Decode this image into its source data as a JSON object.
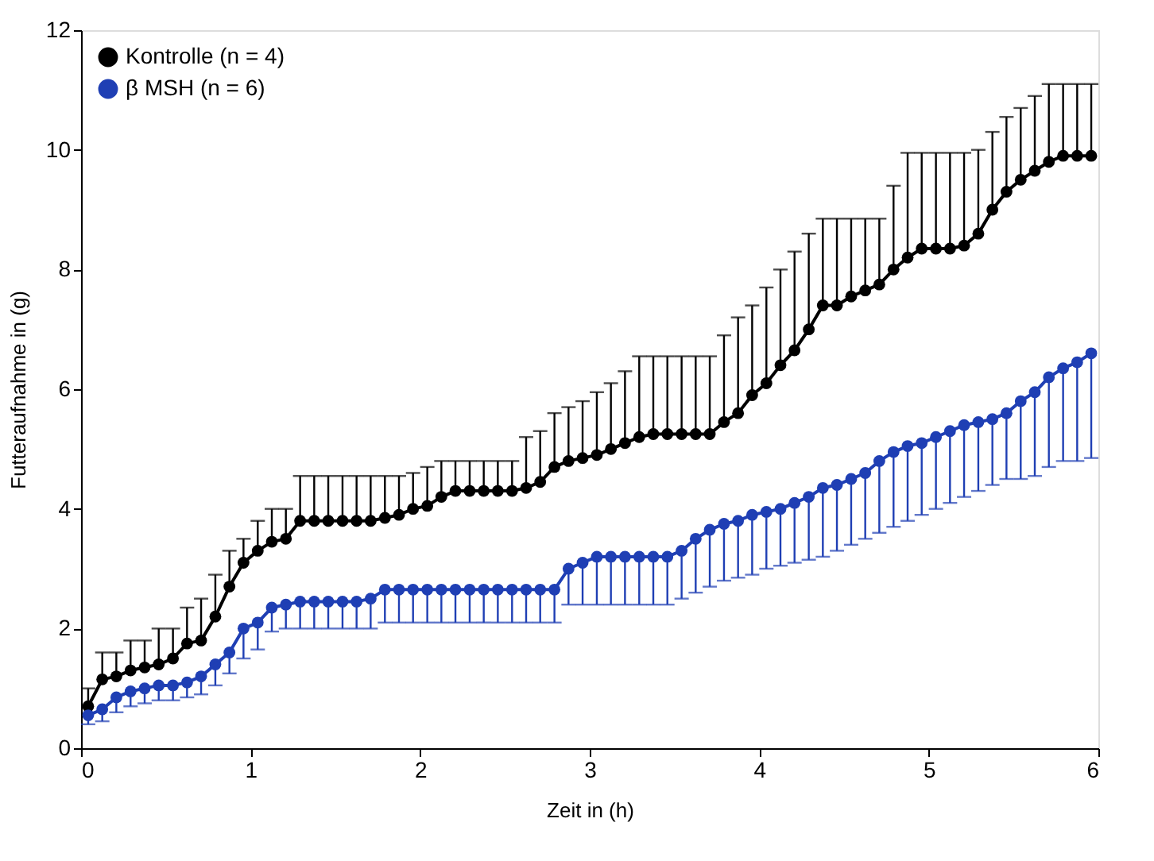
{
  "chart_data": {
    "type": "line",
    "xlabel": "Zeit in (h)",
    "ylabel": "Futteraufnahme in (g)",
    "xlim": [
      0,
      6
    ],
    "ylim": [
      0,
      12
    ],
    "xticks": [
      0,
      1,
      2,
      3,
      4,
      5,
      6
    ],
    "yticks": [
      0,
      2,
      4,
      6,
      8,
      10,
      12
    ],
    "grid": false,
    "legend": "top left",
    "marker": "circle",
    "line_style": "solid",
    "x": [
      0.042,
      0.125,
      0.208,
      0.292,
      0.375,
      0.458,
      0.542,
      0.625,
      0.708,
      0.792,
      0.875,
      0.958,
      1.042,
      1.125,
      1.208,
      1.292,
      1.375,
      1.458,
      1.542,
      1.625,
      1.708,
      1.792,
      1.875,
      1.958,
      2.042,
      2.125,
      2.208,
      2.292,
      2.375,
      2.458,
      2.542,
      2.625,
      2.708,
      2.792,
      2.875,
      2.958,
      3.042,
      3.125,
      3.208,
      3.292,
      3.375,
      3.458,
      3.542,
      3.625,
      3.708,
      3.792,
      3.875,
      3.958,
      4.042,
      4.125,
      4.208,
      4.292,
      4.375,
      4.458,
      4.542,
      4.625,
      4.708,
      4.792,
      4.875,
      4.958,
      5.042,
      5.125,
      5.208,
      5.292,
      5.375,
      5.458,
      5.542,
      5.625,
      5.708,
      5.792,
      5.875,
      5.958
    ],
    "series": [
      {
        "name": "Kontrolle (n = 4)",
        "color": "#000000",
        "values": [
          0.7,
          1.15,
          1.2,
          1.3,
          1.35,
          1.4,
          1.5,
          1.75,
          1.8,
          2.2,
          2.7,
          3.1,
          3.3,
          3.45,
          3.5,
          3.8,
          3.8,
          3.8,
          3.8,
          3.8,
          3.8,
          3.85,
          3.9,
          4.0,
          4.05,
          4.2,
          4.3,
          4.3,
          4.3,
          4.3,
          4.3,
          4.35,
          4.45,
          4.7,
          4.8,
          4.85,
          4.9,
          5.0,
          5.1,
          5.2,
          5.25,
          5.25,
          5.25,
          5.25,
          5.25,
          5.45,
          5.6,
          5.9,
          6.1,
          6.4,
          6.65,
          7.0,
          7.4,
          7.4,
          7.55,
          7.65,
          7.75,
          8.0,
          8.2,
          8.35,
          8.35,
          8.35,
          8.4,
          8.6,
          9.0,
          9.3,
          9.5,
          9.65,
          9.8,
          9.9,
          9.9,
          9.9
        ],
        "errors": [
          [
            0.7,
            1.0
          ],
          [
            1.15,
            1.6
          ],
          [
            1.2,
            1.6
          ],
          [
            1.3,
            1.8
          ],
          [
            1.35,
            1.8
          ],
          [
            1.4,
            2.0
          ],
          [
            1.5,
            2.0
          ],
          [
            1.75,
            2.35
          ],
          [
            1.8,
            2.5
          ],
          [
            2.2,
            2.9
          ],
          [
            2.7,
            3.3
          ],
          [
            3.1,
            3.5
          ],
          [
            3.3,
            3.8
          ],
          [
            3.45,
            4.0
          ],
          [
            3.5,
            4.0
          ],
          [
            3.8,
            4.55
          ],
          [
            3.8,
            4.55
          ],
          [
            3.8,
            4.55
          ],
          [
            3.8,
            4.55
          ],
          [
            3.8,
            4.55
          ],
          [
            3.8,
            4.55
          ],
          [
            3.85,
            4.55
          ],
          [
            3.9,
            4.55
          ],
          [
            4.0,
            4.6
          ],
          [
            4.05,
            4.7
          ],
          [
            4.2,
            4.8
          ],
          [
            4.3,
            4.8
          ],
          [
            4.3,
            4.8
          ],
          [
            4.3,
            4.8
          ],
          [
            4.3,
            4.8
          ],
          [
            4.3,
            4.8
          ],
          [
            4.35,
            5.2
          ],
          [
            4.45,
            5.3
          ],
          [
            4.7,
            5.6
          ],
          [
            4.8,
            5.7
          ],
          [
            4.85,
            5.8
          ],
          [
            4.9,
            5.95
          ],
          [
            5.0,
            6.1
          ],
          [
            5.1,
            6.3
          ],
          [
            5.2,
            6.55
          ],
          [
            5.25,
            6.55
          ],
          [
            5.25,
            6.55
          ],
          [
            5.25,
            6.55
          ],
          [
            5.25,
            6.55
          ],
          [
            5.25,
            6.55
          ],
          [
            5.45,
            6.9
          ],
          [
            5.6,
            7.2
          ],
          [
            5.9,
            7.4
          ],
          [
            6.1,
            7.7
          ],
          [
            6.4,
            8.0
          ],
          [
            6.65,
            8.3
          ],
          [
            7.0,
            8.6
          ],
          [
            7.4,
            8.85
          ],
          [
            7.4,
            8.85
          ],
          [
            7.55,
            8.85
          ],
          [
            7.65,
            8.85
          ],
          [
            7.75,
            8.85
          ],
          [
            8.0,
            9.4
          ],
          [
            8.2,
            9.95
          ],
          [
            8.35,
            9.95
          ],
          [
            8.35,
            9.95
          ],
          [
            8.35,
            9.95
          ],
          [
            8.4,
            9.95
          ],
          [
            8.6,
            10.0
          ],
          [
            9.0,
            10.3
          ],
          [
            9.3,
            10.55
          ],
          [
            9.5,
            10.7
          ],
          [
            9.65,
            10.9
          ],
          [
            9.8,
            11.1
          ],
          [
            9.9,
            11.1
          ],
          [
            9.9,
            11.1
          ],
          [
            9.9,
            11.1
          ]
        ]
      },
      {
        "name": "β MSH (n = 6)",
        "color": "#1f3fb4",
        "values": [
          0.55,
          0.65,
          0.85,
          0.95,
          1.0,
          1.05,
          1.05,
          1.1,
          1.2,
          1.4,
          1.6,
          2.0,
          2.1,
          2.35,
          2.4,
          2.45,
          2.45,
          2.45,
          2.45,
          2.45,
          2.5,
          2.65,
          2.65,
          2.65,
          2.65,
          2.65,
          2.65,
          2.65,
          2.65,
          2.65,
          2.65,
          2.65,
          2.65,
          2.65,
          3.0,
          3.1,
          3.2,
          3.2,
          3.2,
          3.2,
          3.2,
          3.2,
          3.3,
          3.5,
          3.65,
          3.75,
          3.8,
          3.9,
          3.95,
          4.0,
          4.1,
          4.2,
          4.35,
          4.4,
          4.5,
          4.6,
          4.8,
          4.95,
          5.05,
          5.1,
          5.2,
          5.3,
          5.4,
          5.45,
          5.5,
          5.6,
          5.8,
          5.95,
          6.2,
          6.35,
          6.45,
          6.6
        ],
        "errors": [
          [
            0.4,
            0.55
          ],
          [
            0.45,
            0.65
          ],
          [
            0.6,
            0.85
          ],
          [
            0.7,
            0.95
          ],
          [
            0.75,
            1.0
          ],
          [
            0.8,
            1.05
          ],
          [
            0.8,
            1.05
          ],
          [
            0.85,
            1.1
          ],
          [
            0.9,
            1.2
          ],
          [
            1.05,
            1.4
          ],
          [
            1.25,
            1.6
          ],
          [
            1.5,
            2.0
          ],
          [
            1.65,
            2.1
          ],
          [
            1.95,
            2.35
          ],
          [
            2.0,
            2.4
          ],
          [
            2.0,
            2.45
          ],
          [
            2.0,
            2.45
          ],
          [
            2.0,
            2.45
          ],
          [
            2.0,
            2.45
          ],
          [
            2.0,
            2.45
          ],
          [
            2.0,
            2.5
          ],
          [
            2.1,
            2.65
          ],
          [
            2.1,
            2.65
          ],
          [
            2.1,
            2.65
          ],
          [
            2.1,
            2.65
          ],
          [
            2.1,
            2.65
          ],
          [
            2.1,
            2.65
          ],
          [
            2.1,
            2.65
          ],
          [
            2.1,
            2.65
          ],
          [
            2.1,
            2.65
          ],
          [
            2.1,
            2.65
          ],
          [
            2.1,
            2.65
          ],
          [
            2.1,
            2.65
          ],
          [
            2.1,
            2.65
          ],
          [
            2.4,
            3.0
          ],
          [
            2.4,
            3.1
          ],
          [
            2.4,
            3.2
          ],
          [
            2.4,
            3.2
          ],
          [
            2.4,
            3.2
          ],
          [
            2.4,
            3.2
          ],
          [
            2.4,
            3.2
          ],
          [
            2.4,
            3.2
          ],
          [
            2.5,
            3.3
          ],
          [
            2.6,
            3.5
          ],
          [
            2.7,
            3.65
          ],
          [
            2.8,
            3.75
          ],
          [
            2.85,
            3.8
          ],
          [
            2.9,
            3.9
          ],
          [
            3.0,
            3.95
          ],
          [
            3.05,
            4.0
          ],
          [
            3.1,
            4.1
          ],
          [
            3.15,
            4.2
          ],
          [
            3.2,
            4.35
          ],
          [
            3.3,
            4.4
          ],
          [
            3.4,
            4.5
          ],
          [
            3.5,
            4.6
          ],
          [
            3.6,
            4.8
          ],
          [
            3.7,
            4.95
          ],
          [
            3.8,
            5.05
          ],
          [
            3.9,
            5.1
          ],
          [
            4.0,
            5.2
          ],
          [
            4.1,
            5.3
          ],
          [
            4.2,
            5.4
          ],
          [
            4.3,
            5.45
          ],
          [
            4.4,
            5.5
          ],
          [
            4.5,
            5.6
          ],
          [
            4.5,
            5.8
          ],
          [
            4.55,
            5.95
          ],
          [
            4.7,
            6.2
          ],
          [
            4.8,
            6.35
          ],
          [
            4.8,
            6.45
          ],
          [
            4.85,
            6.6
          ]
        ]
      }
    ]
  }
}
